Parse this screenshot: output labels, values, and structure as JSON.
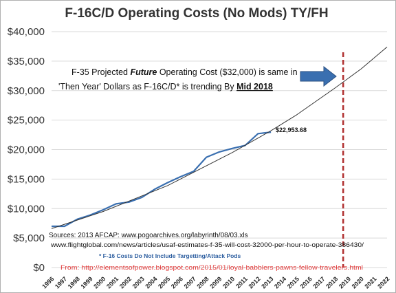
{
  "chart_data": {
    "type": "line",
    "title": "F-16C/D Operating Costs (No Mods) TY/FH",
    "xlabel": "",
    "ylabel": "",
    "x_tick_labels": [
      "1996",
      "1997",
      "1998",
      "1999",
      "2000",
      "2001",
      "2002",
      "2003",
      "2004",
      "2005",
      "2006",
      "2007",
      "2008",
      "2009",
      "2010",
      "2011",
      "2012",
      "2013",
      "2014",
      "2015",
      "2016",
      "2017",
      "2018",
      "2019",
      "2020",
      "2021",
      "2022"
    ],
    "y_tick_labels": [
      "$0",
      "$5,000",
      "$10,000",
      "$15,000",
      "$20,000",
      "$25,000",
      "$30,000",
      "$35,000",
      "$40,000"
    ],
    "xlim": [
      1996,
      2022
    ],
    "ylim": [
      0,
      40000
    ],
    "grid": {
      "horizontal": true,
      "vertical": false
    },
    "colors": {
      "actual": "#3a6fb0",
      "trend": "#333333",
      "marker": "#b03030",
      "arrow": "#3a6fb0",
      "source_text": "#111111",
      "note_text": "#2e5fa0",
      "from_text": "#e03a3a",
      "grid": "#d9d9d9"
    },
    "series": [
      {
        "name": "",
        "kind": "actual",
        "x": [
          1996,
          1997,
          1998,
          1999,
          2000,
          2001,
          2002,
          2003,
          2004,
          2005,
          2006,
          2007,
          2008,
          2009,
          2010,
          2011,
          2012,
          2013
        ],
        "values": [
          7000,
          7000,
          8200,
          8900,
          9800,
          10800,
          11100,
          11900,
          13300,
          14400,
          15400,
          16300,
          18700,
          19600,
          20200,
          20700,
          22700,
          22953.68
        ]
      },
      {
        "name": "",
        "kind": "trend",
        "x": [
          1996,
          2000,
          2005,
          2010,
          2013,
          2015,
          2018,
          2020,
          2022
        ],
        "values": [
          6600,
          9500,
          13900,
          19500,
          23200,
          25900,
          30500,
          33700,
          37400
        ]
      }
    ],
    "vertical_marker": {
      "x": 2018.6,
      "style": "dashed"
    },
    "data_label": {
      "x": 2013,
      "y": 22953.68,
      "text": "$22,953.68"
    },
    "annotation": {
      "line1_before": "F-35 Projected ",
      "line1_emphasis": "Future",
      "line1_after": " Operating Cost ($32,000) is same in",
      "line2_before": "'Then Year' Dollars as F-16C/D* is trending By ",
      "line2_emphasis": "Mid 2018"
    },
    "sources": {
      "line1": "Sources: 2013 AFCAP: www.pogoarchives.org/labyrinth/08/03.xls",
      "line2": "www.flightglobal.com/news/articles/usaf-estimates-f-35-will-cost-32000-per-hour-to-operate-386430/"
    },
    "note": "* F-16 Costs Do Not Include Targetting/Attack Pods",
    "from": "From: http://elementsofpower.blogspot.com/2015/01/loyal-babblers-pawns-fellow-travelers.html"
  }
}
